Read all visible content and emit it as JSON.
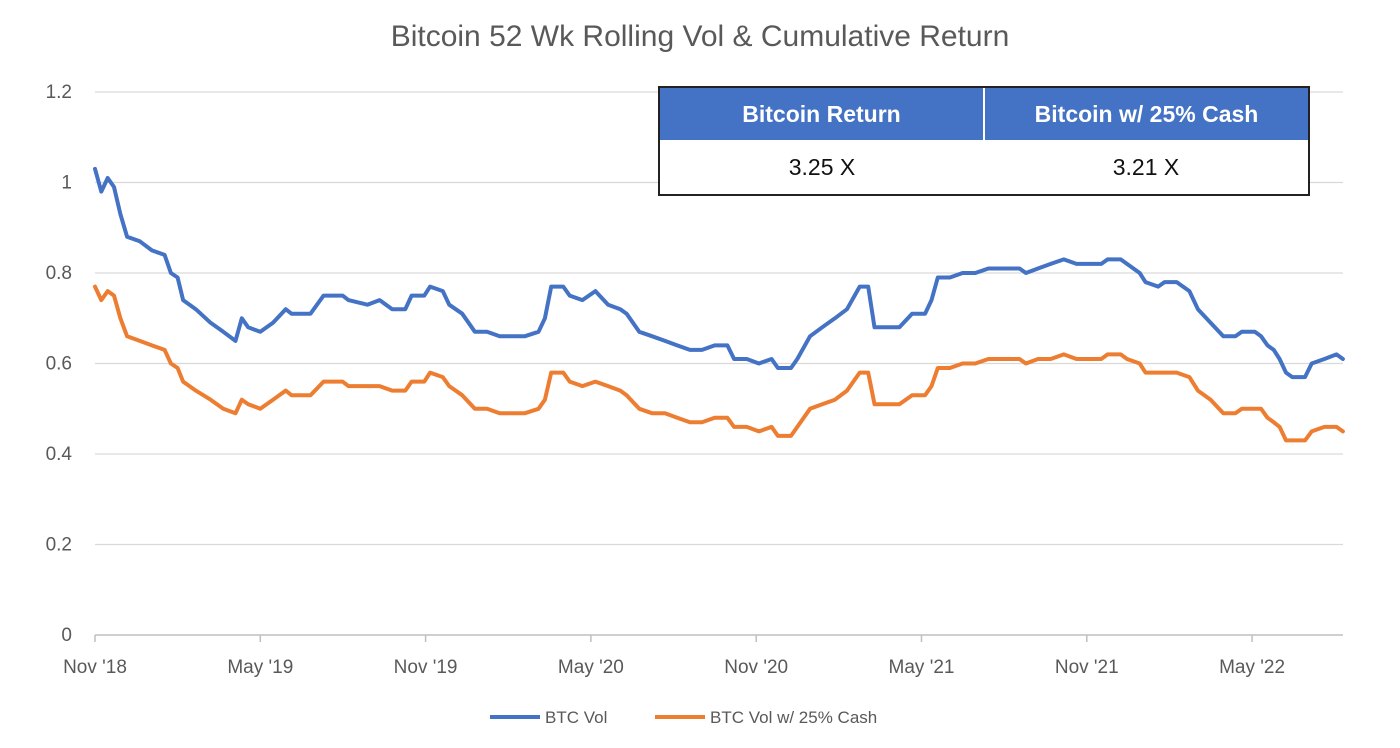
{
  "chart_data": {
    "type": "line",
    "title": "Bitcoin 52 Wk Rolling Vol & Cumulative Return",
    "xlabel": "",
    "ylabel": "",
    "ylim": [
      0,
      1.2
    ],
    "y_ticks": [
      "0",
      "0.2",
      "0.4",
      "0.6",
      "0.8",
      "1",
      "1.2"
    ],
    "x_range": [
      "2018-11",
      "2022-07"
    ],
    "x_ticks": [
      "Nov '18",
      "May '19",
      "Nov '19",
      "May '20",
      "Nov '20",
      "May '21",
      "Nov '21",
      "May '22"
    ],
    "grid": true,
    "legend_position": "bottom",
    "series": [
      {
        "name": "BTC Vol",
        "color": "#4472c4",
        "points": [
          [
            "2018-11-01",
            1.03
          ],
          [
            "2018-11-08",
            0.98
          ],
          [
            "2018-11-15",
            1.01
          ],
          [
            "2018-11-22",
            0.99
          ],
          [
            "2018-11-29",
            0.93
          ],
          [
            "2018-12-06",
            0.88
          ],
          [
            "2018-12-20",
            0.87
          ],
          [
            "2019-01-03",
            0.85
          ],
          [
            "2019-01-17",
            0.84
          ],
          [
            "2019-01-24",
            0.8
          ],
          [
            "2019-02-01",
            0.79
          ],
          [
            "2019-02-07",
            0.74
          ],
          [
            "2019-02-21",
            0.72
          ],
          [
            "2019-03-07",
            0.69
          ],
          [
            "2019-03-21",
            0.67
          ],
          [
            "2019-04-04",
            0.65
          ],
          [
            "2019-04-11",
            0.7
          ],
          [
            "2019-04-18",
            0.68
          ],
          [
            "2019-05-01",
            0.67
          ],
          [
            "2019-05-15",
            0.69
          ],
          [
            "2019-05-29",
            0.72
          ],
          [
            "2019-06-05",
            0.71
          ],
          [
            "2019-06-26",
            0.71
          ],
          [
            "2019-07-10",
            0.75
          ],
          [
            "2019-07-31",
            0.75
          ],
          [
            "2019-08-07",
            0.74
          ],
          [
            "2019-08-28",
            0.73
          ],
          [
            "2019-09-11",
            0.74
          ],
          [
            "2019-09-25",
            0.72
          ],
          [
            "2019-10-09",
            0.72
          ],
          [
            "2019-10-16",
            0.75
          ],
          [
            "2019-10-30",
            0.75
          ],
          [
            "2019-11-06",
            0.77
          ],
          [
            "2019-11-20",
            0.76
          ],
          [
            "2019-11-27",
            0.73
          ],
          [
            "2019-12-11",
            0.71
          ],
          [
            "2019-12-25",
            0.67
          ],
          [
            "2020-01-08",
            0.67
          ],
          [
            "2020-01-22",
            0.66
          ],
          [
            "2020-02-05",
            0.66
          ],
          [
            "2020-02-19",
            0.66
          ],
          [
            "2020-03-04",
            0.67
          ],
          [
            "2020-03-11",
            0.7
          ],
          [
            "2020-03-18",
            0.77
          ],
          [
            "2020-04-01",
            0.77
          ],
          [
            "2020-04-08",
            0.75
          ],
          [
            "2020-04-22",
            0.74
          ],
          [
            "2020-05-06",
            0.76
          ],
          [
            "2020-05-20",
            0.73
          ],
          [
            "2020-06-03",
            0.72
          ],
          [
            "2020-06-10",
            0.71
          ],
          [
            "2020-06-24",
            0.67
          ],
          [
            "2020-07-08",
            0.66
          ],
          [
            "2020-07-22",
            0.65
          ],
          [
            "2020-08-05",
            0.64
          ],
          [
            "2020-08-19",
            0.63
          ],
          [
            "2020-09-02",
            0.63
          ],
          [
            "2020-09-16",
            0.64
          ],
          [
            "2020-09-30",
            0.64
          ],
          [
            "2020-10-07",
            0.61
          ],
          [
            "2020-10-21",
            0.61
          ],
          [
            "2020-11-04",
            0.6
          ],
          [
            "2020-11-18",
            0.61
          ],
          [
            "2020-11-25",
            0.59
          ],
          [
            "2020-12-09",
            0.59
          ],
          [
            "2020-12-16",
            0.61
          ],
          [
            "2020-12-30",
            0.66
          ],
          [
            "2021-01-13",
            0.68
          ],
          [
            "2021-01-27",
            0.7
          ],
          [
            "2021-02-10",
            0.72
          ],
          [
            "2021-02-24",
            0.77
          ],
          [
            "2021-03-03",
            0.77
          ],
          [
            "2021-03-10",
            0.68
          ],
          [
            "2021-03-24",
            0.68
          ],
          [
            "2021-04-07",
            0.68
          ],
          [
            "2021-04-21",
            0.71
          ],
          [
            "2021-05-05",
            0.71
          ],
          [
            "2021-05-12",
            0.74
          ],
          [
            "2021-05-19",
            0.79
          ],
          [
            "2021-06-02",
            0.79
          ],
          [
            "2021-06-16",
            0.8
          ],
          [
            "2021-06-30",
            0.8
          ],
          [
            "2021-07-14",
            0.81
          ],
          [
            "2021-08-04",
            0.81
          ],
          [
            "2021-08-18",
            0.81
          ],
          [
            "2021-08-25",
            0.8
          ],
          [
            "2021-09-08",
            0.81
          ],
          [
            "2021-09-22",
            0.82
          ],
          [
            "2021-10-06",
            0.83
          ],
          [
            "2021-10-20",
            0.82
          ],
          [
            "2021-11-03",
            0.82
          ],
          [
            "2021-11-17",
            0.82
          ],
          [
            "2021-11-24",
            0.83
          ],
          [
            "2021-12-08",
            0.83
          ],
          [
            "2021-12-15",
            0.82
          ],
          [
            "2021-12-29",
            0.8
          ],
          [
            "2022-01-05",
            0.78
          ],
          [
            "2022-01-19",
            0.77
          ],
          [
            "2022-01-26",
            0.78
          ],
          [
            "2022-02-09",
            0.78
          ],
          [
            "2022-02-23",
            0.76
          ],
          [
            "2022-03-02",
            0.72
          ],
          [
            "2022-03-16",
            0.69
          ],
          [
            "2022-03-30",
            0.66
          ],
          [
            "2022-04-13",
            0.66
          ],
          [
            "2022-04-20",
            0.67
          ],
          [
            "2022-05-04",
            0.67
          ],
          [
            "2022-05-11",
            0.66
          ],
          [
            "2022-05-18",
            0.64
          ],
          [
            "2022-05-25",
            0.63
          ],
          [
            "2022-06-01",
            0.61
          ],
          [
            "2022-06-08",
            0.58
          ],
          [
            "2022-06-15",
            0.57
          ],
          [
            "2022-06-29",
            0.57
          ],
          [
            "2022-07-06",
            0.6
          ],
          [
            "2022-07-20",
            0.61
          ],
          [
            "2022-08-03",
            0.62
          ],
          [
            "2022-08-10",
            0.61
          ]
        ]
      },
      {
        "name": "BTC Vol w/ 25% Cash",
        "color": "#ed7d31",
        "points": [
          [
            "2018-11-01",
            0.77
          ],
          [
            "2018-11-08",
            0.74
          ],
          [
            "2018-11-15",
            0.76
          ],
          [
            "2018-11-22",
            0.75
          ],
          [
            "2018-11-29",
            0.7
          ],
          [
            "2018-12-06",
            0.66
          ],
          [
            "2018-12-20",
            0.65
          ],
          [
            "2019-01-03",
            0.64
          ],
          [
            "2019-01-17",
            0.63
          ],
          [
            "2019-01-24",
            0.6
          ],
          [
            "2019-02-01",
            0.59
          ],
          [
            "2019-02-07",
            0.56
          ],
          [
            "2019-02-21",
            0.54
          ],
          [
            "2019-03-07",
            0.52
          ],
          [
            "2019-03-21",
            0.5
          ],
          [
            "2019-04-04",
            0.49
          ],
          [
            "2019-04-11",
            0.52
          ],
          [
            "2019-04-18",
            0.51
          ],
          [
            "2019-05-01",
            0.5
          ],
          [
            "2019-05-15",
            0.52
          ],
          [
            "2019-05-29",
            0.54
          ],
          [
            "2019-06-05",
            0.53
          ],
          [
            "2019-06-26",
            0.53
          ],
          [
            "2019-07-10",
            0.56
          ],
          [
            "2019-07-31",
            0.56
          ],
          [
            "2019-08-07",
            0.55
          ],
          [
            "2019-08-28",
            0.55
          ],
          [
            "2019-09-11",
            0.55
          ],
          [
            "2019-09-25",
            0.54
          ],
          [
            "2019-10-09",
            0.54
          ],
          [
            "2019-10-16",
            0.56
          ],
          [
            "2019-10-30",
            0.56
          ],
          [
            "2019-11-06",
            0.58
          ],
          [
            "2019-11-20",
            0.57
          ],
          [
            "2019-11-27",
            0.55
          ],
          [
            "2019-12-11",
            0.53
          ],
          [
            "2019-12-25",
            0.5
          ],
          [
            "2020-01-08",
            0.5
          ],
          [
            "2020-01-22",
            0.49
          ],
          [
            "2020-02-05",
            0.49
          ],
          [
            "2020-02-19",
            0.49
          ],
          [
            "2020-03-04",
            0.5
          ],
          [
            "2020-03-11",
            0.52
          ],
          [
            "2020-03-18",
            0.58
          ],
          [
            "2020-04-01",
            0.58
          ],
          [
            "2020-04-08",
            0.56
          ],
          [
            "2020-04-22",
            0.55
          ],
          [
            "2020-05-06",
            0.56
          ],
          [
            "2020-05-20",
            0.55
          ],
          [
            "2020-06-03",
            0.54
          ],
          [
            "2020-06-10",
            0.53
          ],
          [
            "2020-06-24",
            0.5
          ],
          [
            "2020-07-08",
            0.49
          ],
          [
            "2020-07-22",
            0.49
          ],
          [
            "2020-08-05",
            0.48
          ],
          [
            "2020-08-19",
            0.47
          ],
          [
            "2020-09-02",
            0.47
          ],
          [
            "2020-09-16",
            0.48
          ],
          [
            "2020-09-30",
            0.48
          ],
          [
            "2020-10-07",
            0.46
          ],
          [
            "2020-10-21",
            0.46
          ],
          [
            "2020-11-04",
            0.45
          ],
          [
            "2020-11-18",
            0.46
          ],
          [
            "2020-11-25",
            0.44
          ],
          [
            "2020-12-09",
            0.44
          ],
          [
            "2020-12-16",
            0.46
          ],
          [
            "2020-12-30",
            0.5
          ],
          [
            "2021-01-13",
            0.51
          ],
          [
            "2021-01-27",
            0.52
          ],
          [
            "2021-02-10",
            0.54
          ],
          [
            "2021-02-24",
            0.58
          ],
          [
            "2021-03-03",
            0.58
          ],
          [
            "2021-03-10",
            0.51
          ],
          [
            "2021-03-24",
            0.51
          ],
          [
            "2021-04-07",
            0.51
          ],
          [
            "2021-04-21",
            0.53
          ],
          [
            "2021-05-05",
            0.53
          ],
          [
            "2021-05-12",
            0.55
          ],
          [
            "2021-05-19",
            0.59
          ],
          [
            "2021-06-02",
            0.59
          ],
          [
            "2021-06-16",
            0.6
          ],
          [
            "2021-06-30",
            0.6
          ],
          [
            "2021-07-14",
            0.61
          ],
          [
            "2021-08-04",
            0.61
          ],
          [
            "2021-08-18",
            0.61
          ],
          [
            "2021-08-25",
            0.6
          ],
          [
            "2021-09-08",
            0.61
          ],
          [
            "2021-09-22",
            0.61
          ],
          [
            "2021-10-06",
            0.62
          ],
          [
            "2021-10-20",
            0.61
          ],
          [
            "2021-11-03",
            0.61
          ],
          [
            "2021-11-17",
            0.61
          ],
          [
            "2021-11-24",
            0.62
          ],
          [
            "2021-12-08",
            0.62
          ],
          [
            "2021-12-15",
            0.61
          ],
          [
            "2021-12-29",
            0.6
          ],
          [
            "2022-01-05",
            0.58
          ],
          [
            "2022-01-19",
            0.58
          ],
          [
            "2022-01-26",
            0.58
          ],
          [
            "2022-02-09",
            0.58
          ],
          [
            "2022-02-23",
            0.57
          ],
          [
            "2022-03-02",
            0.54
          ],
          [
            "2022-03-16",
            0.52
          ],
          [
            "2022-03-30",
            0.49
          ],
          [
            "2022-04-13",
            0.49
          ],
          [
            "2022-04-20",
            0.5
          ],
          [
            "2022-05-04",
            0.5
          ],
          [
            "2022-05-11",
            0.5
          ],
          [
            "2022-05-18",
            0.48
          ],
          [
            "2022-05-25",
            0.47
          ],
          [
            "2022-06-01",
            0.46
          ],
          [
            "2022-06-08",
            0.43
          ],
          [
            "2022-06-15",
            0.43
          ],
          [
            "2022-06-29",
            0.43
          ],
          [
            "2022-07-06",
            0.45
          ],
          [
            "2022-07-20",
            0.46
          ],
          [
            "2022-08-03",
            0.46
          ],
          [
            "2022-08-10",
            0.45
          ]
        ]
      }
    ]
  },
  "summary_table": {
    "headers": [
      "Bitcoin Return",
      "Bitcoin w/ 25% Cash"
    ],
    "values": [
      "3.25 X",
      "3.21 X"
    ],
    "header_color": "#4472c4"
  }
}
